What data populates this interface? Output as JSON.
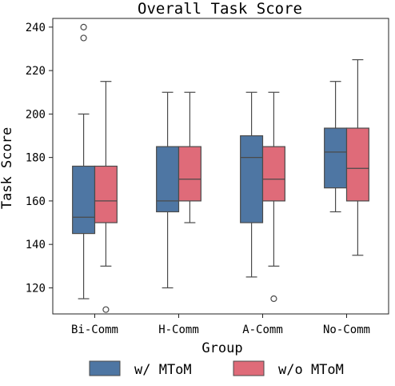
{
  "chart_data": {
    "type": "box",
    "title": "Overall Task Score",
    "xlabel": "Group",
    "ylabel": "Task Score",
    "categories": [
      "Bi-Comm",
      "H-Comm",
      "A-Comm",
      "No-Comm"
    ],
    "ylim": [
      108,
      244
    ],
    "yticks": [
      120,
      140,
      160,
      180,
      200,
      220,
      240
    ],
    "grid": false,
    "legend_position": "bottom",
    "series": [
      {
        "name": "w/ MToM",
        "color": "#4e76a3",
        "boxes": [
          {
            "q1": 145,
            "median": 152.5,
            "q3": 176,
            "whisker_low": 115,
            "whisker_high": 200,
            "outliers": [
              235,
              240
            ]
          },
          {
            "q1": 155,
            "median": 160,
            "q3": 185,
            "whisker_low": 120,
            "whisker_high": 210,
            "outliers": []
          },
          {
            "q1": 150,
            "median": 180,
            "q3": 190,
            "whisker_low": 125,
            "whisker_high": 210,
            "outliers": []
          },
          {
            "q1": 166,
            "median": 182.5,
            "q3": 193.5,
            "whisker_low": 155,
            "whisker_high": 215,
            "outliers": []
          }
        ]
      },
      {
        "name": "w/o MToM",
        "color": "#df6b79",
        "boxes": [
          {
            "q1": 150,
            "median": 160,
            "q3": 176,
            "whisker_low": 130,
            "whisker_high": 215,
            "outliers": [
              110
            ]
          },
          {
            "q1": 160,
            "median": 170,
            "q3": 185,
            "whisker_low": 150,
            "whisker_high": 210,
            "outliers": []
          },
          {
            "q1": 160,
            "median": 170,
            "q3": 185,
            "whisker_low": 130,
            "whisker_high": 210,
            "outliers": [
              115
            ]
          },
          {
            "q1": 160,
            "median": 175,
            "q3": 193.5,
            "whisker_low": 135,
            "whisker_high": 225,
            "outliers": []
          }
        ]
      }
    ]
  }
}
